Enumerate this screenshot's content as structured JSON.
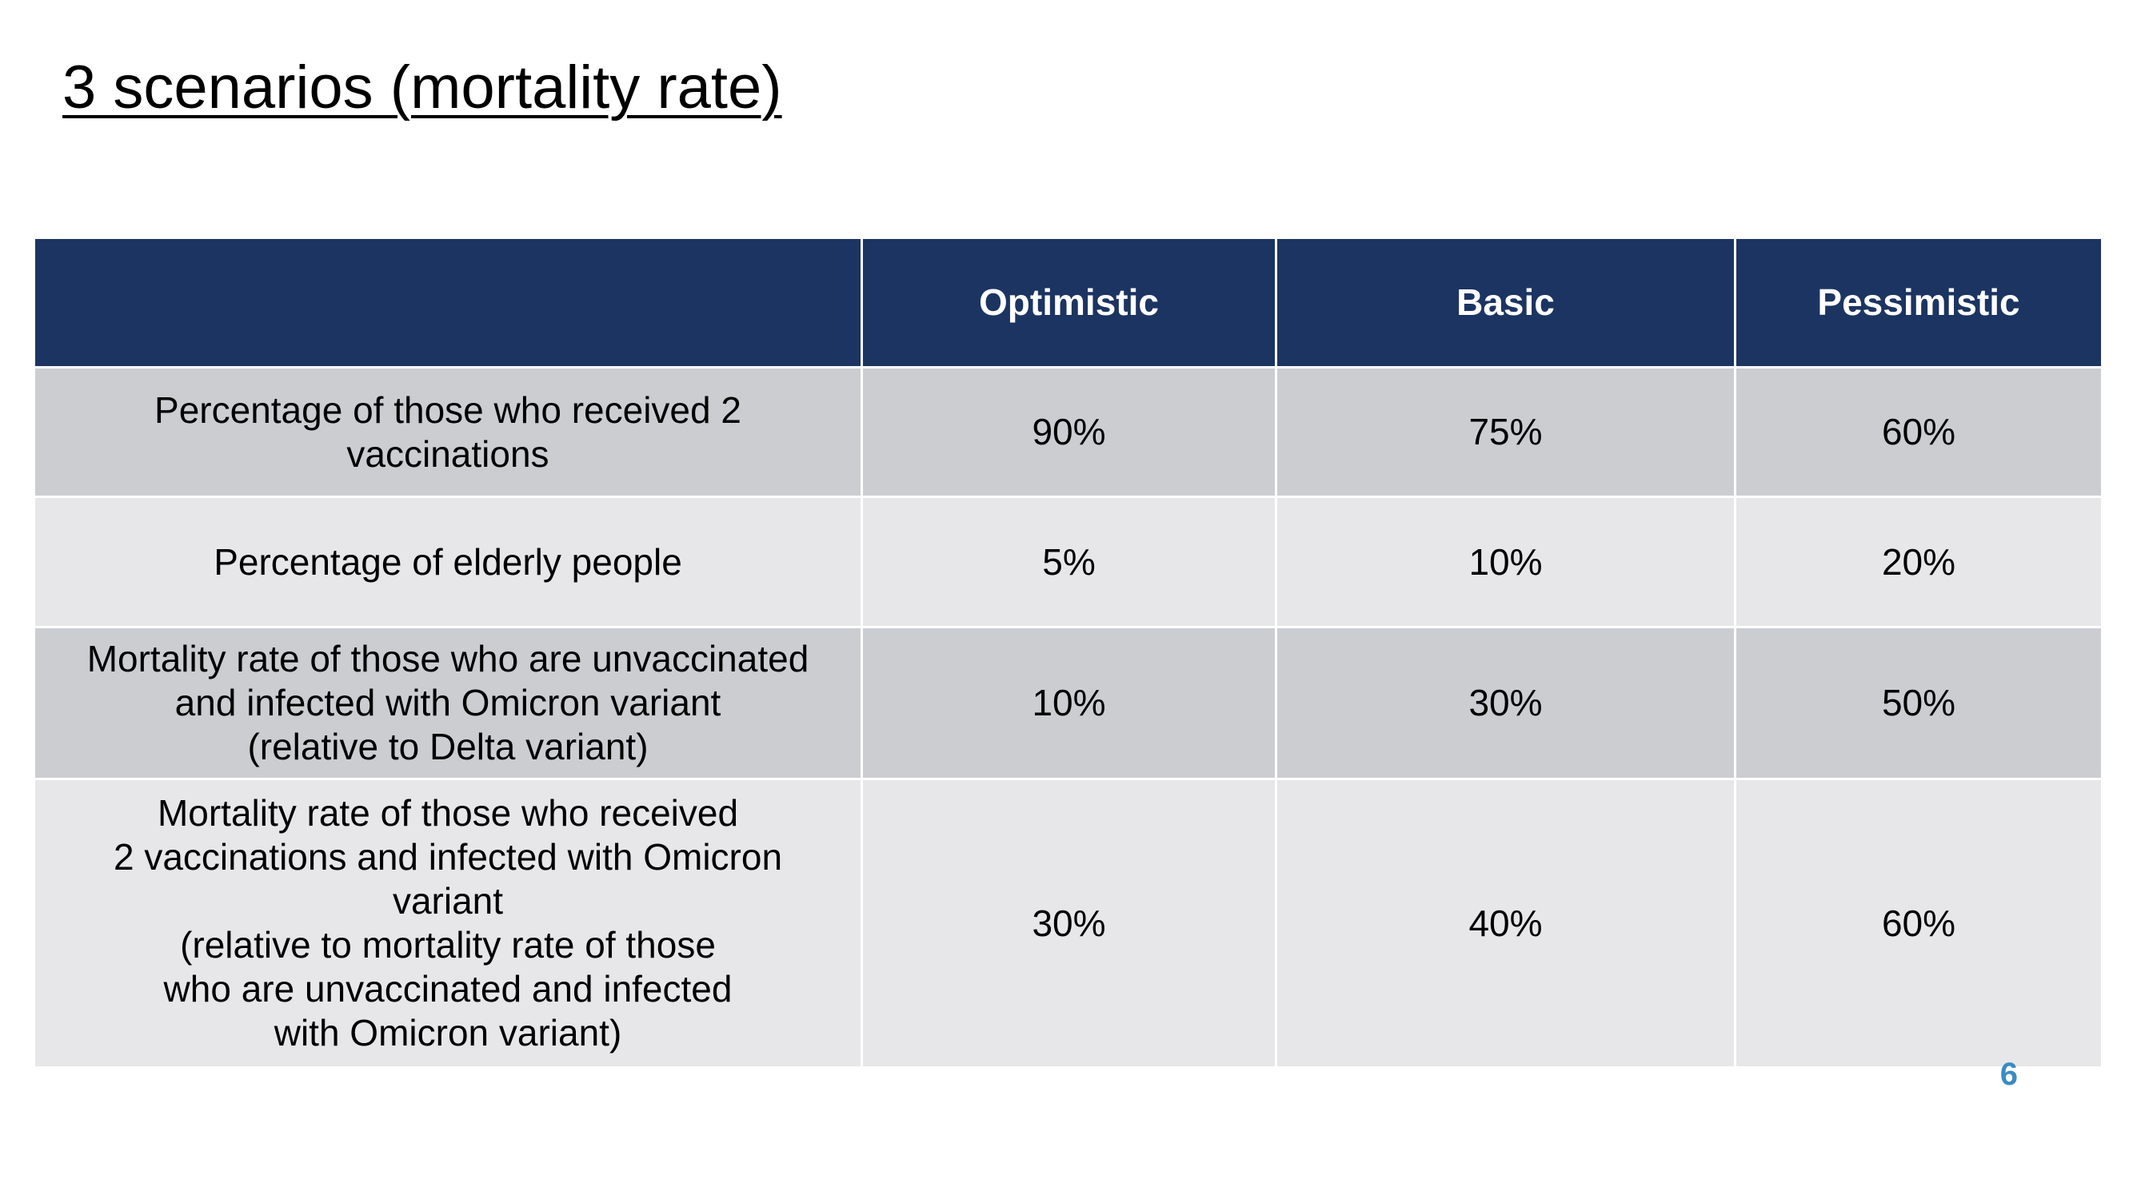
{
  "slide": {
    "title": "3 scenarios (mortality rate)",
    "page_number": "6"
  },
  "table": {
    "headers": [
      "",
      "Optimistic",
      "Basic",
      "Pessimistic"
    ],
    "rows": [
      {
        "label": "Percentage of those who received 2\nvaccinations",
        "values": [
          "90%",
          "75%",
          "60%"
        ]
      },
      {
        "label": "Percentage of elderly people",
        "values": [
          "5%",
          "10%",
          "20%"
        ]
      },
      {
        "label": "Mortality rate of those who are unvaccinated\nand infected with Omicron variant\n(relative to Delta variant)",
        "values": [
          "10%",
          "30%",
          "50%"
        ]
      },
      {
        "label": "Mortality rate of those who received\n2 vaccinations and infected with Omicron\nvariant\n(relative to mortality rate of those\nwho are unvaccinated and infected\nwith Omicron variant)",
        "values": [
          "30%",
          "40%",
          "60%"
        ]
      }
    ]
  },
  "colors": {
    "header_bg": "#1c3461",
    "row_odd_bg": "#cbcdd1",
    "row_even_bg": "#e7e7ea",
    "page_number": "#3a8cc4"
  }
}
